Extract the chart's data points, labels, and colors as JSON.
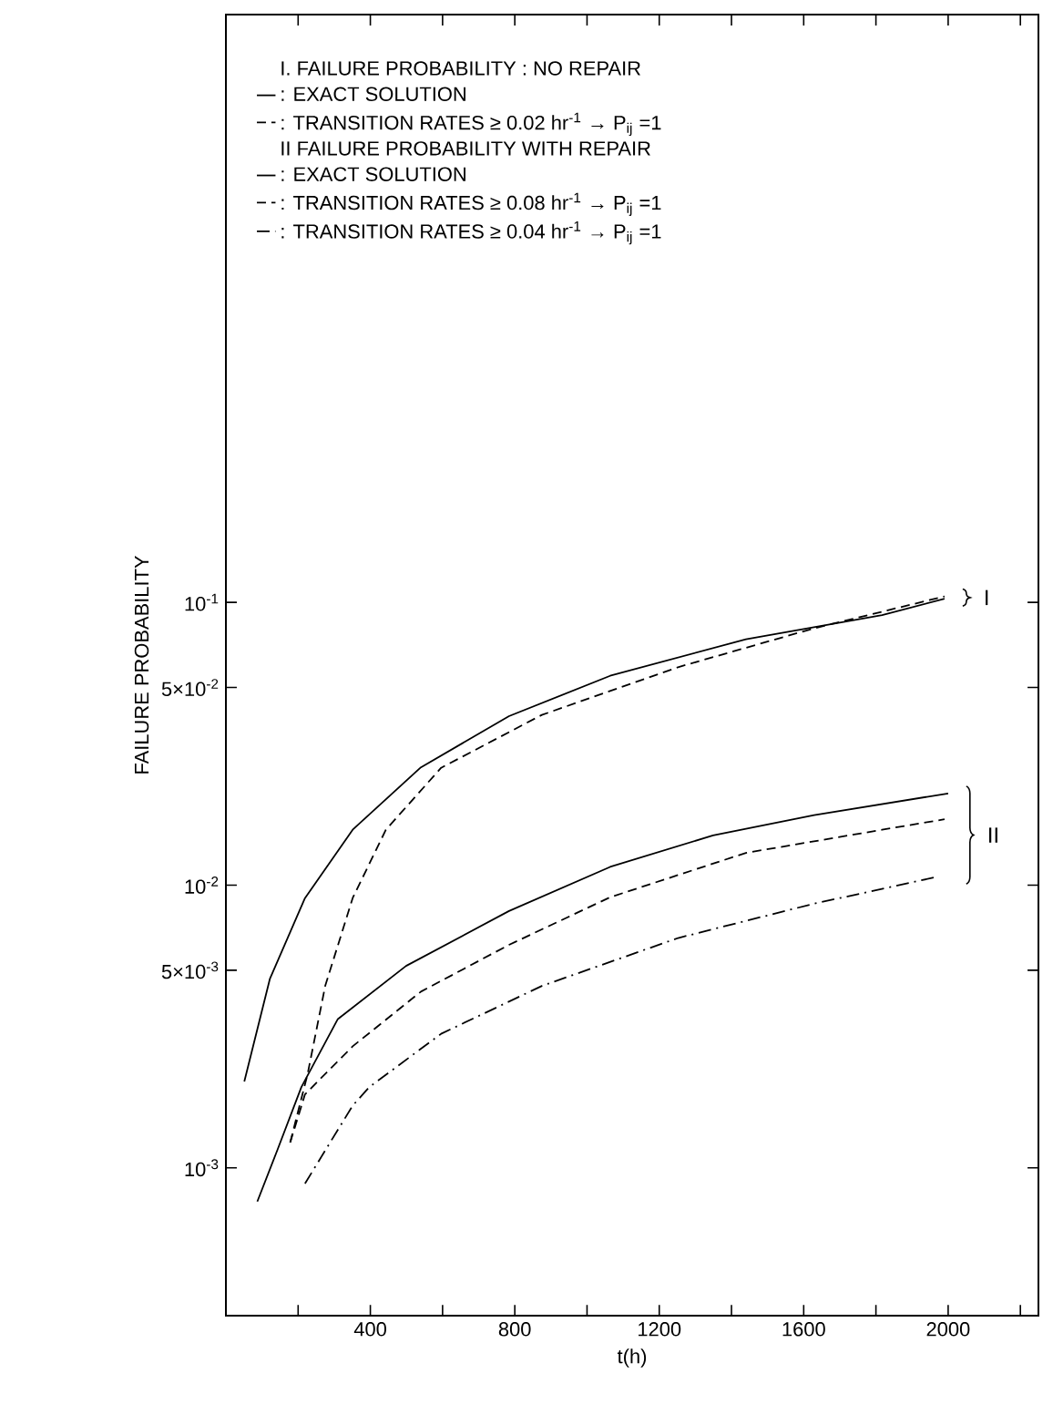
{
  "chart_data": {
    "type": "line",
    "xlabel": "t(h)",
    "ylabel": "FAILURE PROBABILITY",
    "log": "y",
    "xlim": [
      0,
      2250
    ],
    "ylim": [
      0.0003,
      12
    ],
    "xticks": [
      {
        "value": 200,
        "label": null
      },
      400,
      {
        "value": 600,
        "label": null
      },
      800,
      {
        "value": 1000,
        "label": null
      },
      1200,
      {
        "value": 1400,
        "label": null
      },
      1600,
      {
        "value": 1800,
        "label": null
      },
      2000,
      {
        "value": 2200,
        "label": null
      }
    ],
    "yticks": [
      {
        "value": 0.001,
        "label": "10$^{-3}$"
      },
      {
        "value": 0.005,
        "label": "5×10$^{-3}$"
      },
      {
        "value": 0.01,
        "label": "10$^{-2}$"
      },
      {
        "value": 0.05,
        "label": "5×10$^{-2}$"
      },
      {
        "value": 0.1,
        "label": "10$^{-1}$"
      }
    ],
    "legend": "top left",
    "grid": false,
    "series": [
      {
        "name": ": EXACT SOLUTION",
        "color": "#000000",
        "line_style": "solid",
        "x": [
          51,
          122,
          219,
          351,
          540,
          784,
          1064,
          1440,
          1817,
          1990
        ],
        "values": [
          0.00202,
          0.00467,
          0.009,
          0.0157,
          0.0261,
          0.0396,
          0.055,
          0.0741,
          0.0901,
          0.103
        ]
      },
      {
        "name": ": TRANSITION RATES ≥ 0.02 hr$^{-1}$ → P$_{ij}$ =1",
        "color": "#000000",
        "line_style": "dashed",
        "x": [
          178,
          226,
          275,
          351,
          443,
          596,
          875,
          1252,
          1629,
          1990
        ],
        "values": [
          0.00123,
          0.00214,
          0.0044,
          0.009,
          0.0157,
          0.026,
          0.04,
          0.059,
          0.081,
          0.105
        ]
      },
      {
        "name": ": EXACT SOLUTION",
        "color": "#000000",
        "line_style": "solid",
        "x": [
          87,
          143,
          209,
          310,
          499,
          784,
          1064,
          1349,
          1629,
          2000
        ],
        "values": [
          0.00076,
          0.00116,
          0.00193,
          0.00336,
          0.00518,
          0.0081,
          0.0116,
          0.015,
          0.0177,
          0.0211
        ]
      },
      {
        "name": ": TRANSITION RATES ≥ 0.08 hr$^{-1}$ → P$_{ij}$ =1",
        "color": "#000000",
        "line_style": "dashed",
        "x": [
          178,
          219,
          351,
          540,
          784,
          1064,
          1440,
          1817,
          1990
        ],
        "values": [
          0.00123,
          0.00182,
          0.00269,
          0.0042,
          0.00615,
          0.00906,
          0.013,
          0.0157,
          0.0171
        ]
      },
      {
        "name": ": TRANSITION RATES ≥ 0.04 hr$^{-1}$ → P$_{ij}$ =1",
        "color": "#000000",
        "line_style": "dashdot",
        "x": [
          219,
          351,
          397,
          596,
          875,
          1252,
          1629,
          1970
        ],
        "values": [
          0.00088,
          0.00166,
          0.00193,
          0.00298,
          0.0044,
          0.0065,
          0.0086,
          0.0107
        ]
      }
    ],
    "annotations": [
      "I. FAILURE PROBABILITY : NO REPAIR",
      "II FAILURE PROBABILITY WITH REPAIR",
      "I",
      "II"
    ]
  }
}
